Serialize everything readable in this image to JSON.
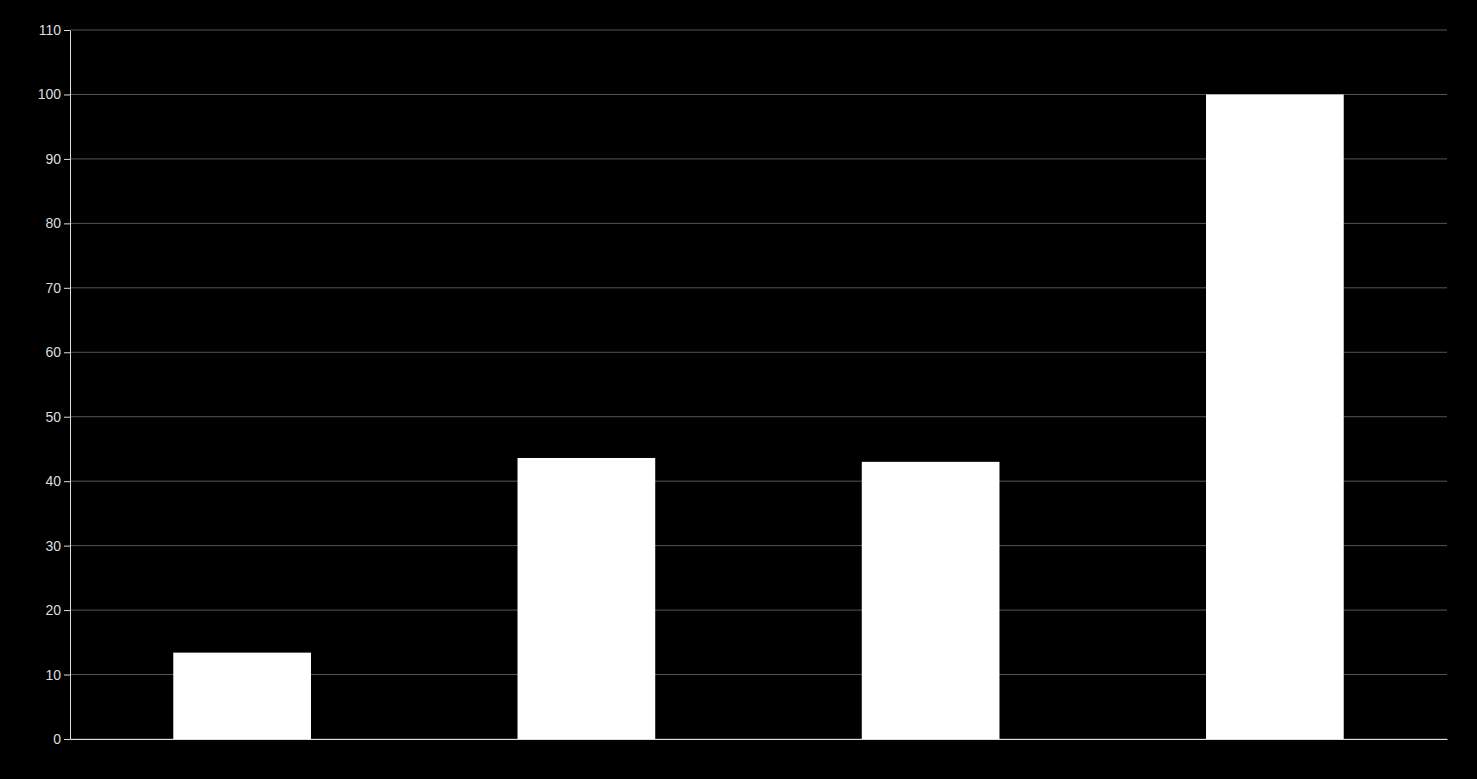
{
  "chart_data": {
    "type": "bar",
    "categories": [
      null,
      null,
      null,
      null
    ],
    "values": [
      13.4,
      43.6,
      43.0,
      100.0
    ],
    "color": "#ffffff",
    "ylim": [
      0,
      110
    ],
    "yticks": [
      0,
      10,
      20,
      30,
      40,
      50,
      60,
      70,
      80,
      90,
      100,
      110
    ],
    "grid": true,
    "tick_labels": "y"
  }
}
